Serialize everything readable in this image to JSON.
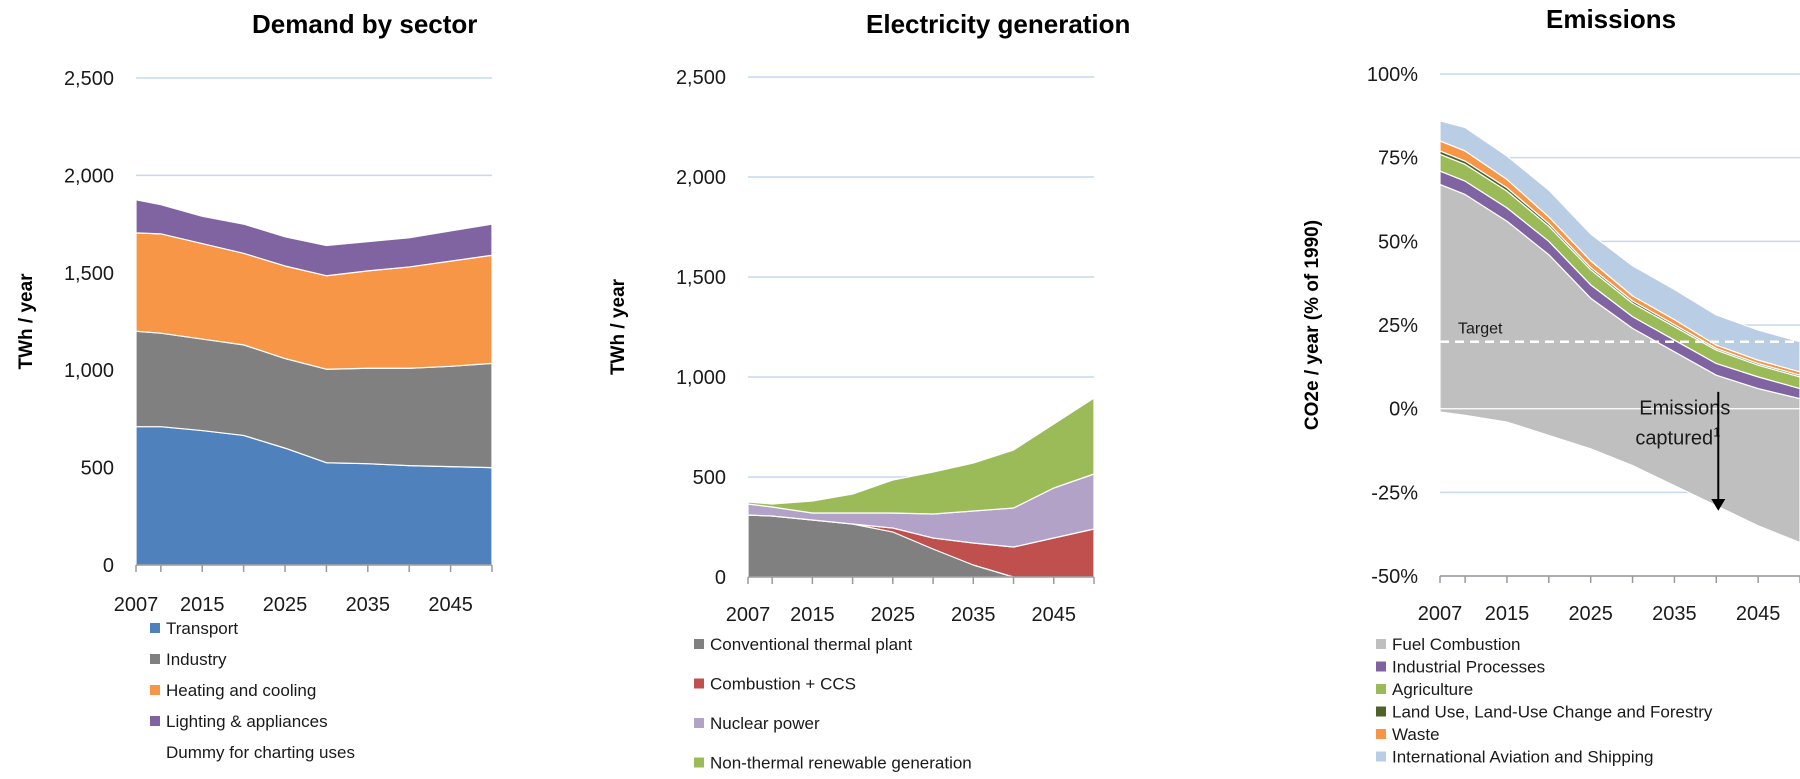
{
  "chart_data": [
    {
      "type": "area",
      "title": "Demand by sector",
      "ylabel": "TWh / year",
      "ylim": [
        0,
        2500
      ],
      "yticks": [
        "0",
        "500",
        "1,000",
        "1,500",
        "2,000",
        "2,500"
      ],
      "xticks": [
        "2007",
        "2015",
        "2025",
        "2035",
        "2045"
      ],
      "x": [
        2007,
        2010,
        2015,
        2020,
        2025,
        2030,
        2035,
        2040,
        2045,
        2050
      ],
      "stacked": true,
      "grid": true,
      "legend_position": "bottom",
      "series": [
        {
          "name": "Transport",
          "color": "#4F81BD",
          "values": [
            710,
            710,
            690,
            665,
            600,
            525,
            520,
            510,
            505,
            500
          ]
        },
        {
          "name": "Industry",
          "color": "#808080",
          "values": [
            490,
            480,
            470,
            465,
            460,
            480,
            490,
            500,
            515,
            535
          ]
        },
        {
          "name": "Heating and cooling",
          "color": "#F79646",
          "values": [
            505,
            510,
            490,
            470,
            475,
            480,
            500,
            520,
            540,
            555
          ]
        },
        {
          "name": "Lighting & appliances",
          "color": "#8064A2",
          "values": [
            170,
            150,
            140,
            150,
            150,
            155,
            150,
            150,
            155,
            160
          ]
        },
        {
          "name": "Dummy for charting uses",
          "color": "none",
          "values": [
            0,
            0,
            0,
            0,
            0,
            0,
            0,
            0,
            0,
            0
          ]
        }
      ]
    },
    {
      "type": "area",
      "title": "Electricity generation",
      "ylabel": "TWh / year",
      "ylim": [
        0,
        2500
      ],
      "yticks": [
        "0",
        "500",
        "1,000",
        "1,500",
        "2,000",
        "2,500"
      ],
      "xticks": [
        "2007",
        "2015",
        "2025",
        "2035",
        "2045"
      ],
      "x": [
        2007,
        2010,
        2015,
        2020,
        2025,
        2030,
        2035,
        2040,
        2045,
        2050
      ],
      "stacked": true,
      "grid": true,
      "legend_position": "bottom",
      "series": [
        {
          "name": "Conventional thermal plant",
          "color": "#808080",
          "values": [
            310,
            305,
            285,
            265,
            225,
            140,
            60,
            0,
            0,
            0
          ]
        },
        {
          "name": "Combustion + CCS",
          "color": "#C0504D",
          "values": [
            0,
            0,
            0,
            0,
            20,
            55,
            110,
            150,
            195,
            240
          ]
        },
        {
          "name": "Nuclear power",
          "color": "#B3A2C7",
          "values": [
            55,
            45,
            35,
            55,
            75,
            120,
            160,
            195,
            250,
            275
          ]
        },
        {
          "name": "Non-thermal renewable generation",
          "color": "#9BBB59",
          "values": [
            10,
            15,
            60,
            95,
            165,
            210,
            240,
            290,
            320,
            380
          ]
        }
      ]
    },
    {
      "type": "area",
      "title": "Emissions",
      "ylabel": "CO2e / year (% of 1990)",
      "ylim": [
        -50,
        100
      ],
      "yticks": [
        "-50%",
        "-25%",
        "0%",
        "25%",
        "50%",
        "75%",
        "100%"
      ],
      "xticks": [
        "2007",
        "2015",
        "2025",
        "2035",
        "2045"
      ],
      "x": [
        2007,
        2010,
        2015,
        2020,
        2025,
        2030,
        2035,
        2040,
        2045,
        2050
      ],
      "stacked": true,
      "grid": true,
      "legend_position": "bottom",
      "target": {
        "label": "Target",
        "value": 20
      },
      "annotation": {
        "label_line1": "Emissions",
        "label_line2": "captured",
        "superscript": "1"
      },
      "negative_band": {
        "name": "Fuel Combustion",
        "values": [
          -1,
          -2,
          -4,
          -8,
          -12,
          -17,
          -23,
          -29,
          -35,
          -40
        ]
      },
      "series": [
        {
          "name": "Fuel Combustion",
          "color": "#BFBFBF",
          "values": [
            67,
            64,
            56,
            46,
            33,
            24,
            17,
            10,
            6,
            3
          ]
        },
        {
          "name": "Industrial Processes",
          "color": "#8064A2",
          "values": [
            4,
            4,
            4,
            4,
            4,
            3.5,
            3.5,
            3.5,
            3.5,
            3
          ]
        },
        {
          "name": "Agriculture",
          "color": "#9BBB59",
          "values": [
            5,
            5,
            5,
            4.5,
            4.5,
            4,
            4,
            4,
            3.5,
            3.5
          ]
        },
        {
          "name": "Land Use, Land-Use Change and Forestry",
          "color": "#4F6228",
          "values": [
            1,
            1,
            1,
            0.8,
            0.7,
            0.7,
            0.6,
            0.5,
            0.5,
            0.5
          ]
        },
        {
          "name": "Waste",
          "color": "#F79646",
          "values": [
            3,
            3,
            2.5,
            2,
            2,
            1.5,
            1.5,
            1,
            1,
            1
          ]
        },
        {
          "name": "International Aviation and Shipping",
          "color": "#B9CDE5",
          "values": [
            6,
            7,
            7,
            8,
            8,
            9,
            9,
            9,
            9,
            9
          ]
        }
      ]
    }
  ]
}
